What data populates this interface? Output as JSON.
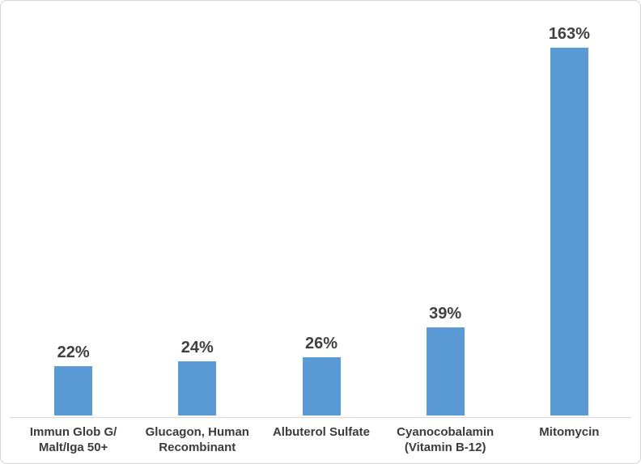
{
  "chart_style": {
    "background": "#ffffff",
    "frame_border_color": "#d4d4d4",
    "axis_line_color": "#d9d9d9",
    "bar_color": "#5b9bd5",
    "data_label_color": "#404040",
    "category_label_color": "#3b3b3b"
  },
  "chart_data": {
    "type": "bar",
    "title": "",
    "xlabel": "",
    "ylabel": "",
    "categories": [
      "Immun Glob G/ Malt/Iga 50+",
      "Glucagon, Human Recombinant",
      "Albuterol Sulfate",
      "Cyanocobalamin (Vitamin B-12)",
      "Mitomycin"
    ],
    "category_lines": [
      [
        "Immun Glob G/",
        "Malt/Iga 50+"
      ],
      [
        "Glucagon, Human",
        "Recombinant"
      ],
      [
        "Albuterol Sulfate"
      ],
      [
        "Cyanocobalamin",
        "(Vitamin B-12)"
      ],
      [
        "Mitomycin"
      ]
    ],
    "values": [
      22,
      24,
      26,
      39,
      163
    ],
    "data_labels": [
      "22%",
      "24%",
      "26%",
      "39%",
      "163%"
    ],
    "ylim": [
      0,
      180
    ],
    "grid": false,
    "legend": false,
    "y_axis_visible": false,
    "bar_color": "#5b9bd5"
  }
}
